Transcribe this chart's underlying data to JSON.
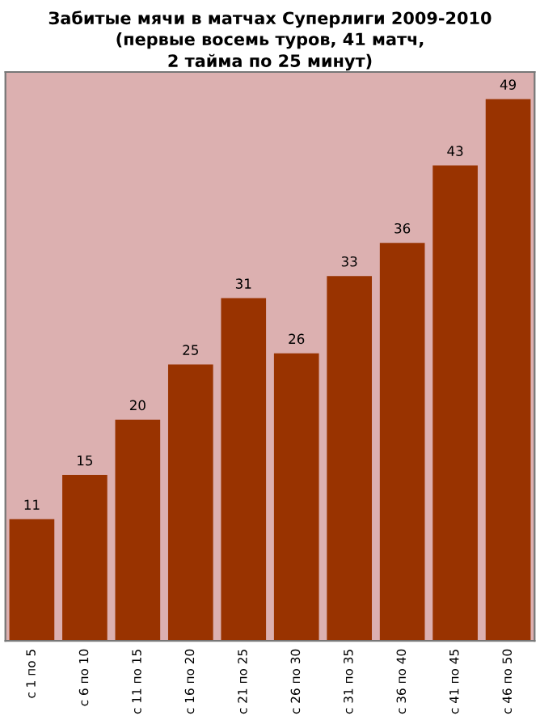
{
  "chart_data": {
    "type": "bar",
    "title": "Забитые мячи в матчах Суперлиги 2009-2010",
    "subtitle": "(первые восемь туров, 41 матч,\n2 тайма по 25 минут)",
    "categories": [
      "с 1 по 5",
      "с 6 по 10",
      "с 11 по 15",
      "с 16 по 20",
      "с 21 по 25",
      "с 26 по 30",
      "с 31 по 35",
      "с 36 по 40",
      "с 41 по 45",
      "с 46 по 50"
    ],
    "values": [
      11,
      15,
      20,
      25,
      31,
      26,
      33,
      36,
      43,
      49
    ],
    "color": "#993300",
    "data_labels": true
  }
}
